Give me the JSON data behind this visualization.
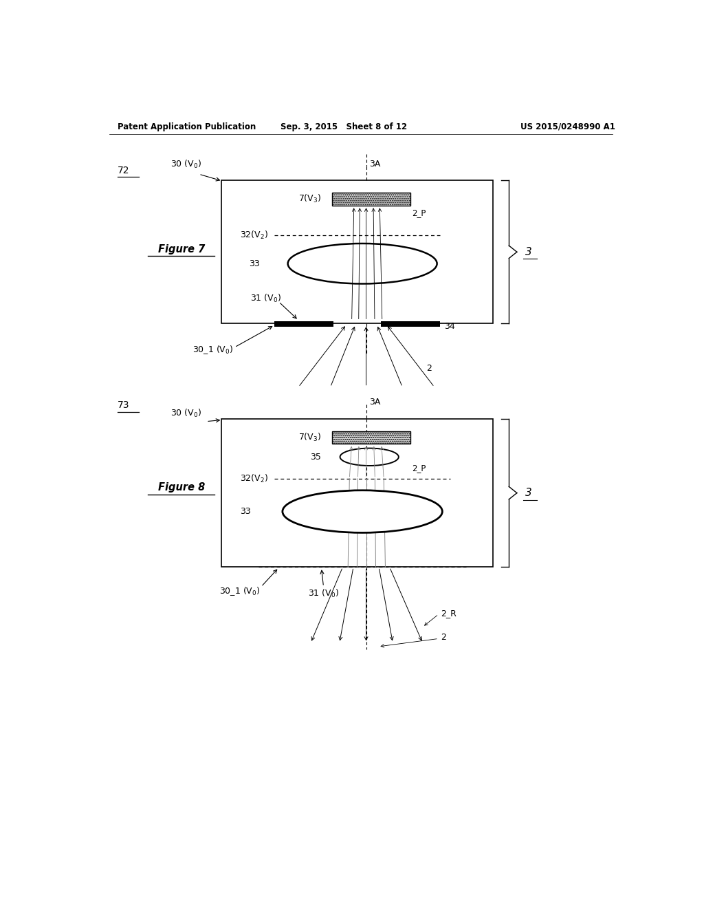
{
  "bg_color": "#ffffff",
  "header_left": "Patent Application Publication",
  "header_mid": "Sep. 3, 2015   Sheet 8 of 12",
  "header_right": "US 2015/0248990 A1",
  "fig1_label": "72",
  "fig1_name": "Figure 7",
  "fig1_ref_label": "3A",
  "fig1_bracket_label": "3",
  "fig2_label": "73",
  "fig2_name": "Figure 8",
  "fig2_ref_label": "3A",
  "fig2_bracket_label": "3",
  "page_width": 10.24,
  "page_height": 13.2
}
